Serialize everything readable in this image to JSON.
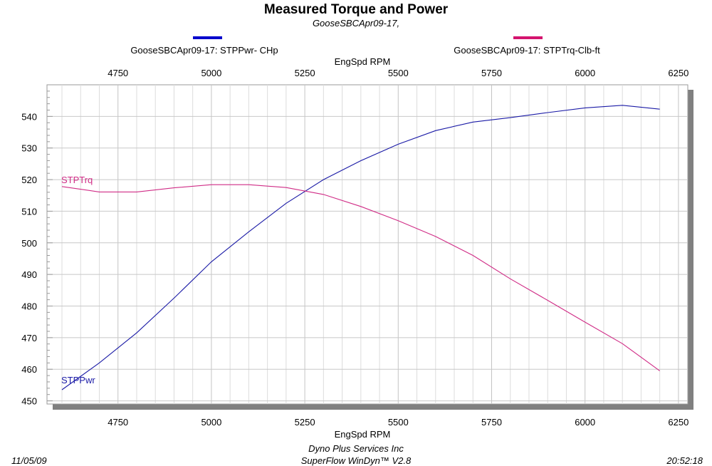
{
  "chart_data": {
    "type": "line",
    "title": "Measured Torque and Power",
    "subtitle": "GooseSBCApr09-17,",
    "xlabel_top": "EngSpd  RPM",
    "xlabel_bottom": "EngSpd  RPM",
    "xlim": [
      4560,
      6275
    ],
    "ylim": [
      449,
      550
    ],
    "xticks": [
      4750,
      5000,
      5250,
      5500,
      5750,
      6000,
      6250
    ],
    "yticks": [
      450,
      460,
      470,
      480,
      490,
      500,
      510,
      520,
      530,
      540
    ],
    "grid": true,
    "legend_position": "top",
    "series": [
      {
        "name": "GooseSBCApr09-17: STPPwr- CHp",
        "label": "STPPwr",
        "color": "#1a1aa6",
        "legend_color": "#0000cc",
        "x": [
          4600,
          4700,
          4800,
          4900,
          5000,
          5100,
          5200,
          5300,
          5400,
          5500,
          5600,
          5700,
          5800,
          5900,
          6000,
          6100,
          6200
        ],
        "values": [
          453.5,
          462,
          471.5,
          482.5,
          494,
          503.5,
          512.5,
          520,
          526,
          531.2,
          535.5,
          538.2,
          539.6,
          541.2,
          542.7,
          543.5,
          542.3
        ]
      },
      {
        "name": "GooseSBCApr09-17: STPTrq-Clb-ft",
        "label": "STPTrq",
        "color": "#d02c86",
        "legend_color": "#d4146e",
        "x": [
          4600,
          4700,
          4800,
          4900,
          5000,
          5100,
          5200,
          5300,
          5400,
          5500,
          5600,
          5700,
          5800,
          5900,
          6000,
          6100,
          6200
        ],
        "values": [
          517.8,
          516.1,
          516.1,
          517.4,
          518.4,
          518.4,
          517.5,
          515.3,
          511.5,
          507,
          502,
          496,
          488.6,
          481.8,
          474.9,
          468.1,
          459.5
        ]
      }
    ]
  },
  "footer": {
    "date": "11/05/09",
    "time": "20:52:18",
    "company": "Dyno Plus Services Inc",
    "software": "SuperFlow WinDyn™ V2.8"
  }
}
